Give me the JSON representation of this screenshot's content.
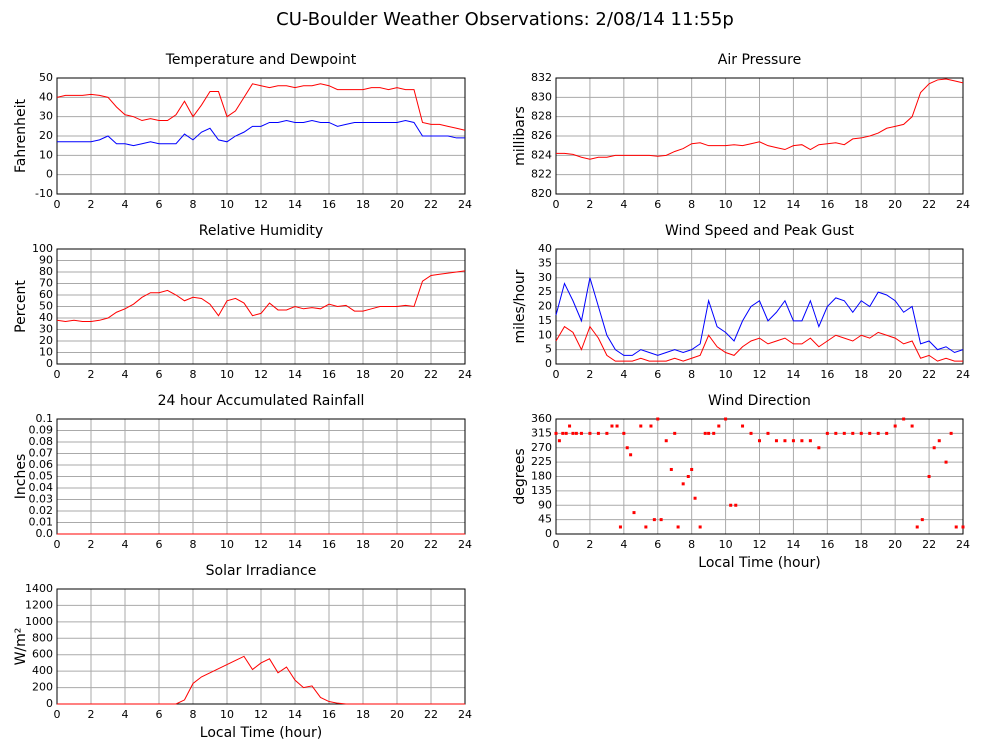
{
  "title": "CU-Boulder Weather Observations: 2/08/14 11:55p",
  "chart_data": [
    {
      "type": "line",
      "title": "Temperature and Dewpoint",
      "ylabel": "Fahrenheit",
      "x": [
        0,
        0.5,
        1,
        1.5,
        2,
        2.5,
        3,
        3.5,
        4,
        4.5,
        5,
        5.5,
        6,
        6.5,
        7,
        7.5,
        8,
        8.5,
        9,
        9.5,
        10,
        10.5,
        11,
        11.5,
        12,
        12.5,
        13,
        13.5,
        14,
        14.5,
        15,
        15.5,
        16,
        16.5,
        17,
        17.5,
        18,
        18.5,
        19,
        19.5,
        20,
        20.5,
        21,
        21.5,
        22,
        22.5,
        23,
        23.5,
        24
      ],
      "series": [
        {
          "color": "#ff0000",
          "values": [
            40,
            41,
            41,
            41,
            41.5,
            41,
            40,
            35,
            31,
            30,
            28,
            29,
            28,
            28,
            31,
            38,
            30,
            36,
            43,
            43,
            30,
            33,
            40,
            47,
            46,
            45,
            46,
            46,
            45,
            46,
            46,
            47,
            46,
            44,
            44,
            44,
            44,
            45,
            45,
            44,
            45,
            44,
            44,
            27,
            26,
            26,
            25,
            24,
            23
          ]
        },
        {
          "color": "#0000ff",
          "values": [
            17,
            17,
            17,
            17,
            17,
            18,
            20,
            16,
            16,
            15,
            16,
            17,
            16,
            16,
            16,
            21,
            18,
            22,
            24,
            18,
            17,
            20,
            22,
            25,
            25,
            27,
            27,
            28,
            27,
            27,
            28,
            27,
            27,
            25,
            26,
            27,
            27,
            27,
            27,
            27,
            27,
            28,
            27,
            20,
            20,
            20,
            20,
            19,
            19
          ]
        }
      ],
      "xlim": [
        0,
        24
      ],
      "xticks": [
        0,
        2,
        4,
        6,
        8,
        10,
        12,
        14,
        16,
        18,
        20,
        22,
        24
      ],
      "ylim": [
        -10,
        50
      ],
      "yticks": [
        -10,
        0,
        10,
        20,
        30,
        40,
        50
      ],
      "grid": true
    },
    {
      "type": "line",
      "title": "Air Pressure",
      "ylabel": "millibars",
      "x": [
        0,
        0.5,
        1,
        1.5,
        2,
        2.5,
        3,
        3.5,
        4,
        4.5,
        5,
        5.5,
        6,
        6.5,
        7,
        7.5,
        8,
        8.5,
        9,
        9.5,
        10,
        10.5,
        11,
        11.5,
        12,
        12.5,
        13,
        13.5,
        14,
        14.5,
        15,
        15.5,
        16,
        16.5,
        17,
        17.5,
        18,
        18.5,
        19,
        19.5,
        20,
        20.5,
        21,
        21.5,
        22,
        22.5,
        23,
        23.5,
        24
      ],
      "series": [
        {
          "color": "#ff0000",
          "values": [
            824.2,
            824.2,
            824.1,
            823.8,
            823.6,
            823.8,
            823.8,
            824,
            824,
            824,
            824,
            824,
            823.9,
            824,
            824.4,
            824.7,
            825.2,
            825.3,
            825,
            825,
            825,
            825.1,
            825,
            825.2,
            825.4,
            825,
            824.8,
            824.6,
            825,
            825.1,
            824.6,
            825.1,
            825.2,
            825.3,
            825.1,
            825.7,
            825.8,
            826,
            826.3,
            826.8,
            827,
            827.2,
            828,
            830.5,
            831.4,
            831.8,
            831.9,
            831.7,
            831.5
          ]
        }
      ],
      "xlim": [
        0,
        24
      ],
      "xticks": [
        0,
        2,
        4,
        6,
        8,
        10,
        12,
        14,
        16,
        18,
        20,
        22,
        24
      ],
      "ylim": [
        820,
        832
      ],
      "yticks": [
        820,
        822,
        824,
        826,
        828,
        830,
        832
      ],
      "grid": true
    },
    {
      "type": "line",
      "title": "Relative Humidity",
      "ylabel": "Percent",
      "x": [
        0,
        0.5,
        1,
        1.5,
        2,
        2.5,
        3,
        3.5,
        4,
        4.5,
        5,
        5.5,
        6,
        6.5,
        7,
        7.5,
        8,
        8.5,
        9,
        9.5,
        10,
        10.5,
        11,
        11.5,
        12,
        12.5,
        13,
        13.5,
        14,
        14.5,
        15,
        15.5,
        16,
        16.5,
        17,
        17.5,
        18,
        18.5,
        19,
        19.5,
        20,
        20.5,
        21,
        21.5,
        22,
        22.5,
        23,
        23.5,
        24
      ],
      "series": [
        {
          "color": "#ff0000",
          "values": [
            38,
            37,
            38,
            37,
            37,
            38,
            40,
            45,
            48,
            52,
            58,
            62,
            62,
            64,
            60,
            55,
            58,
            57,
            52,
            42,
            55,
            57,
            53,
            42,
            44,
            53,
            47,
            47,
            50,
            48,
            49,
            48,
            52,
            50,
            51,
            46,
            46,
            48,
            50,
            50,
            50,
            51,
            50,
            72,
            77,
            78,
            79,
            80,
            81
          ]
        }
      ],
      "xlim": [
        0,
        24
      ],
      "xticks": [
        0,
        2,
        4,
        6,
        8,
        10,
        12,
        14,
        16,
        18,
        20,
        22,
        24
      ],
      "ylim": [
        0,
        100
      ],
      "yticks": [
        0,
        10,
        20,
        30,
        40,
        50,
        60,
        70,
        80,
        90,
        100
      ],
      "grid": true
    },
    {
      "type": "line",
      "title": "Wind Speed and Peak Gust",
      "ylabel": "miles/hour",
      "x": [
        0,
        0.5,
        1,
        1.5,
        2,
        2.5,
        3,
        3.5,
        4,
        4.5,
        5,
        5.5,
        6,
        6.5,
        7,
        7.5,
        8,
        8.5,
        9,
        9.5,
        10,
        10.5,
        11,
        11.5,
        12,
        12.5,
        13,
        13.5,
        14,
        14.5,
        15,
        15.5,
        16,
        16.5,
        17,
        17.5,
        18,
        18.5,
        19,
        19.5,
        20,
        20.5,
        21,
        21.5,
        22,
        22.5,
        23,
        23.5,
        24
      ],
      "series": [
        {
          "color": "#0000ff",
          "values": [
            17,
            28,
            22,
            15,
            30,
            20,
            10,
            5,
            3,
            3,
            5,
            4,
            3,
            4,
            5,
            4,
            5,
            7,
            22,
            13,
            11,
            8,
            15,
            20,
            22,
            15,
            18,
            22,
            15,
            15,
            22,
            13,
            20,
            23,
            22,
            18,
            22,
            20,
            25,
            24,
            22,
            18,
            20,
            7,
            8,
            5,
            6,
            4,
            5
          ]
        },
        {
          "color": "#ff0000",
          "values": [
            8,
            13,
            11,
            5,
            13,
            9,
            3,
            1,
            1,
            1,
            2,
            1,
            1,
            1,
            2,
            1,
            2,
            3,
            10,
            6,
            4,
            3,
            6,
            8,
            9,
            7,
            8,
            9,
            7,
            7,
            9,
            6,
            8,
            10,
            9,
            8,
            10,
            9,
            11,
            10,
            9,
            7,
            8,
            2,
            3,
            1,
            2,
            1,
            1
          ]
        }
      ],
      "xlim": [
        0,
        24
      ],
      "xticks": [
        0,
        2,
        4,
        6,
        8,
        10,
        12,
        14,
        16,
        18,
        20,
        22,
        24
      ],
      "ylim": [
        0,
        40
      ],
      "yticks": [
        0,
        5,
        10,
        15,
        20,
        25,
        30,
        35,
        40
      ],
      "grid": true
    },
    {
      "type": "line",
      "title": "24 hour Accumulated Rainfall",
      "ylabel": "Inches",
      "x": [
        0,
        24
      ],
      "series": [
        {
          "color": "#ff0000",
          "values": [
            0,
            0
          ]
        }
      ],
      "xlim": [
        0,
        24
      ],
      "xticks": [
        0,
        2,
        4,
        6,
        8,
        10,
        12,
        14,
        16,
        18,
        20,
        22,
        24
      ],
      "ylim": [
        0,
        0.1
      ],
      "yticks": [
        {
          "value": 0,
          "label": "0.0"
        },
        0.01,
        0.02,
        0.03,
        0.04,
        0.05,
        0.06,
        0.07,
        0.08,
        0.09,
        0.1
      ],
      "grid": true
    },
    {
      "type": "scatter",
      "title": "Wind Direction",
      "ylabel": "degrees",
      "xlabel": "Local Time (hour)",
      "color": "#ff0000",
      "x": [
        0,
        0.2,
        0.4,
        0.6,
        0.8,
        1,
        1.2,
        1.5,
        2,
        2.5,
        3,
        3.3,
        3.6,
        3.8,
        4,
        4.2,
        4.4,
        4.6,
        5,
        5.3,
        5.6,
        5.8,
        6,
        6.2,
        6.5,
        6.8,
        7,
        7.2,
        7.5,
        7.8,
        8,
        8.2,
        8.5,
        8.8,
        9,
        9.3,
        9.6,
        10,
        10.3,
        10.6,
        11,
        11.5,
        12,
        12.5,
        13,
        13.5,
        14,
        14.5,
        15,
        15.5,
        16,
        16.5,
        17,
        17.5,
        18,
        18.5,
        19,
        19.5,
        20,
        20.5,
        21,
        21.3,
        21.6,
        22,
        22.3,
        22.6,
        23,
        23.3,
        23.6,
        24
      ],
      "values": [
        315,
        292,
        315,
        315,
        338,
        315,
        315,
        315,
        315,
        315,
        315,
        338,
        338,
        22,
        315,
        270,
        248,
        67,
        338,
        22,
        338,
        45,
        360,
        45,
        292,
        202,
        315,
        22,
        157,
        180,
        202,
        112,
        22,
        315,
        315,
        315,
        338,
        360,
        90,
        90,
        338,
        315,
        292,
        315,
        292,
        292,
        292,
        292,
        292,
        270,
        315,
        315,
        315,
        315,
        315,
        315,
        315,
        315,
        338,
        360,
        338,
        22,
        45,
        180,
        270,
        292,
        225,
        315,
        22,
        22
      ],
      "xlim": [
        0,
        24
      ],
      "xticks": [
        0,
        2,
        4,
        6,
        8,
        10,
        12,
        14,
        16,
        18,
        20,
        22,
        24
      ],
      "ylim": [
        0,
        360
      ],
      "yticks": [
        0,
        45,
        90,
        135,
        180,
        225,
        270,
        315,
        360
      ],
      "grid": true
    },
    {
      "type": "line",
      "title": "Solar Irradiance",
      "ylabel": "W/m²",
      "xlabel": "Local Time (hour)",
      "x": [
        0,
        0.5,
        1,
        1.5,
        2,
        2.5,
        3,
        3.5,
        4,
        4.5,
        5,
        5.5,
        6,
        6.5,
        7,
        7.5,
        8,
        8.5,
        9,
        9.5,
        10,
        10.5,
        11,
        11.5,
        12,
        12.5,
        13,
        13.5,
        14,
        14.5,
        15,
        15.5,
        16,
        16.5,
        17,
        17.5,
        18,
        18.5,
        19,
        19.5,
        20,
        20.5,
        21,
        21.5,
        22,
        22.5,
        23,
        23.5,
        24
      ],
      "series": [
        {
          "color": "#ff0000",
          "values": [
            0,
            0,
            0,
            0,
            0,
            0,
            0,
            0,
            0,
            0,
            0,
            0,
            0,
            0,
            0,
            50,
            250,
            330,
            380,
            430,
            480,
            530,
            580,
            420,
            500,
            550,
            380,
            450,
            290,
            200,
            220,
            80,
            30,
            10,
            0,
            0,
            0,
            0,
            0,
            0,
            0,
            0,
            0,
            0,
            0,
            0,
            0,
            0,
            0
          ]
        }
      ],
      "xlim": [
        0,
        24
      ],
      "xticks": [
        0,
        2,
        4,
        6,
        8,
        10,
        12,
        14,
        16,
        18,
        20,
        22,
        24
      ],
      "ylim": [
        0,
        1400
      ],
      "yticks": [
        0,
        200,
        400,
        600,
        800,
        1000,
        1200,
        1400
      ],
      "grid": true
    }
  ]
}
